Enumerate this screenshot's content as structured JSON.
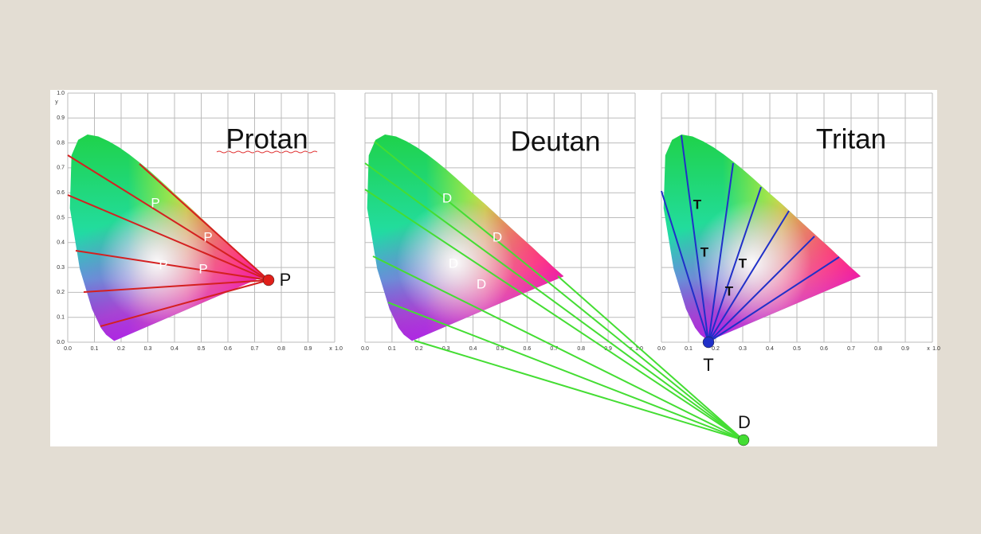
{
  "panels": [
    {
      "title": "Protan",
      "point_label": "P",
      "line_labels": [
        "P",
        "P",
        "P",
        "P"
      ]
    },
    {
      "title": "Deutan",
      "point_label": "D",
      "line_labels": [
        "D",
        "D",
        "D",
        "D"
      ]
    },
    {
      "title": "Tritan",
      "point_label": "T",
      "line_labels": [
        "T",
        "T",
        "T",
        "T"
      ]
    }
  ],
  "x_axis": {
    "ticks": [
      "0.0",
      "0.1",
      "0.2",
      "0.3",
      "0.4",
      "0.5",
      "0.6",
      "0.7",
      "0.8",
      "0.9"
    ],
    "name": "x",
    "end": "1.0"
  },
  "y_axis": {
    "ticks": [
      "0.0",
      "0.1",
      "0.2",
      "0.3",
      "0.4",
      "0.5",
      "0.6",
      "0.7",
      "0.8",
      "0.9"
    ],
    "name": "y",
    "end": "1.0"
  }
}
